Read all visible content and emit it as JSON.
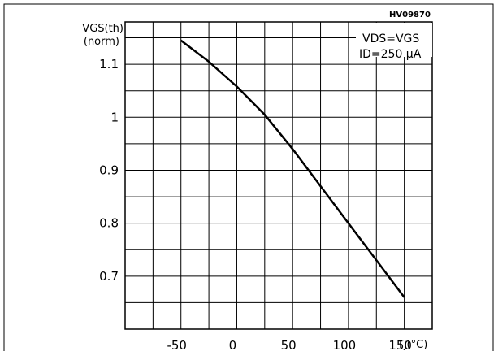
{
  "figure_code": "HV09870",
  "chart_data": {
    "type": "line",
    "title": "",
    "ylabel_line1": "VGS(th)",
    "ylabel_line2": "(norm)",
    "xlabel": "Tj(°C)",
    "conditions": [
      "VDS=VGS",
      "ID=250 µA"
    ],
    "xlim": [
      -100,
      175
    ],
    "ylim": [
      0.6,
      1.18
    ],
    "x_ticks": [
      -50,
      0,
      50,
      100,
      150
    ],
    "x_tick_labels": [
      "-50",
      "0",
      "50",
      "100",
      "150"
    ],
    "y_ticks": [
      0.7,
      0.8,
      0.9,
      1.0,
      1.1
    ],
    "y_tick_labels": [
      "0.7",
      "0.8",
      "0.9",
      "1",
      "1.1"
    ],
    "grid": true,
    "series": [
      {
        "x": [
          -50,
          -25,
          0,
          25,
          50,
          75,
          100,
          125,
          150
        ],
        "y": [
          1.145,
          1.105,
          1.058,
          1.005,
          0.94,
          0.87,
          0.8,
          0.73,
          0.66
        ]
      }
    ]
  }
}
